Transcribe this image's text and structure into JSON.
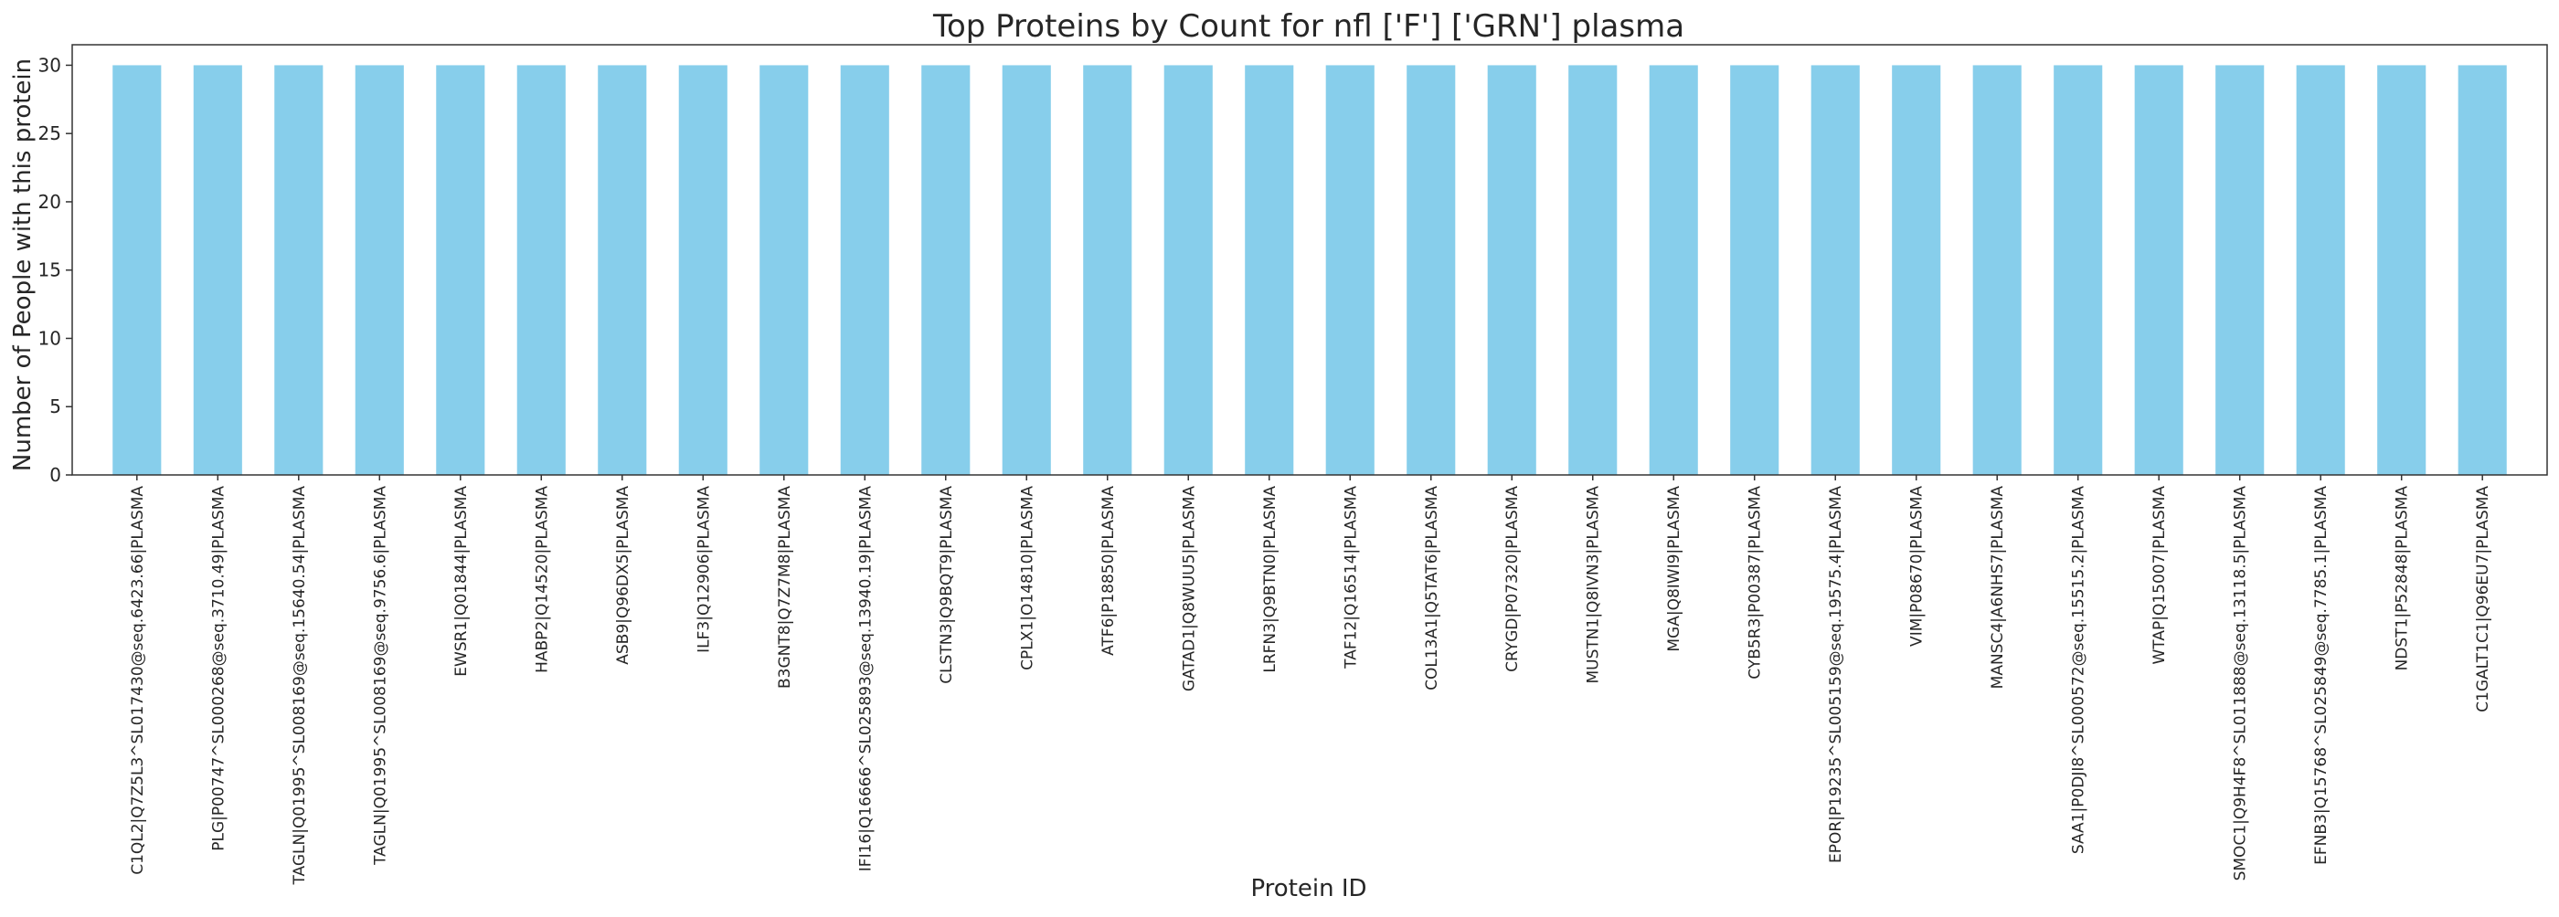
{
  "chart_data": {
    "type": "bar",
    "title": "Top Proteins by Count for nfl ['F'] ['GRN'] plasma",
    "xlabel": "Protein ID",
    "ylabel": "Number of People with this protein",
    "ylim": [
      0,
      31.5
    ],
    "yticks": [
      0,
      5,
      10,
      15,
      20,
      25,
      30
    ],
    "grid": false,
    "legend": "none",
    "bar_color": "#87ceeb",
    "categories": [
      "C1QL2|Q7Z5L3^SL017430@seq.6423.66|PLASMA",
      "PLG|P00747^SL000268@seq.3710.49|PLASMA",
      "TAGLN|Q01995^SL008169@seq.15640.54|PLASMA",
      "TAGLN|Q01995^SL008169@seq.9756.6|PLASMA",
      "EWSR1|Q01844|PLASMA",
      "HABP2|Q14520|PLASMA",
      "ASB9|Q96DX5|PLASMA",
      "ILF3|Q12906|PLASMA",
      "B3GNT8|Q7Z7M8|PLASMA",
      "IFI16|Q16666^SL025893@seq.13940.19|PLASMA",
      "CLSTN3|Q9BQT9|PLASMA",
      "CPLX1|O14810|PLASMA",
      "ATF6|P18850|PLASMA",
      "GATAD1|Q8WUU5|PLASMA",
      "LRFN3|Q9BTN0|PLASMA",
      "TAF12|Q16514|PLASMA",
      "COL13A1|Q5TAT6|PLASMA",
      "CRYGD|P07320|PLASMA",
      "MUSTN1|Q8IVN3|PLASMA",
      "MGA|Q8IWI9|PLASMA",
      "CYB5R3|P00387|PLASMA",
      "EPOR|P19235^SL005159@seq.19575.4|PLASMA",
      "VIM|P08670|PLASMA",
      "MANSC4|A6NHS7|PLASMA",
      "SAA1|P0DJI8^SL000572@seq.15515.2|PLASMA",
      "WTAP|Q15007|PLASMA",
      "SMOC1|Q9H4F8^SL011888@seq.13118.5|PLASMA",
      "EFNB3|Q15768^SL025849@seq.7785.1|PLASMA",
      "NDST1|P52848|PLASMA",
      "C1GALT1C1|Q96EU7|PLASMA"
    ],
    "values": [
      30,
      30,
      30,
      30,
      30,
      30,
      30,
      30,
      30,
      30,
      30,
      30,
      30,
      30,
      30,
      30,
      30,
      30,
      30,
      30,
      30,
      30,
      30,
      30,
      30,
      30,
      30,
      30,
      30,
      30
    ]
  }
}
